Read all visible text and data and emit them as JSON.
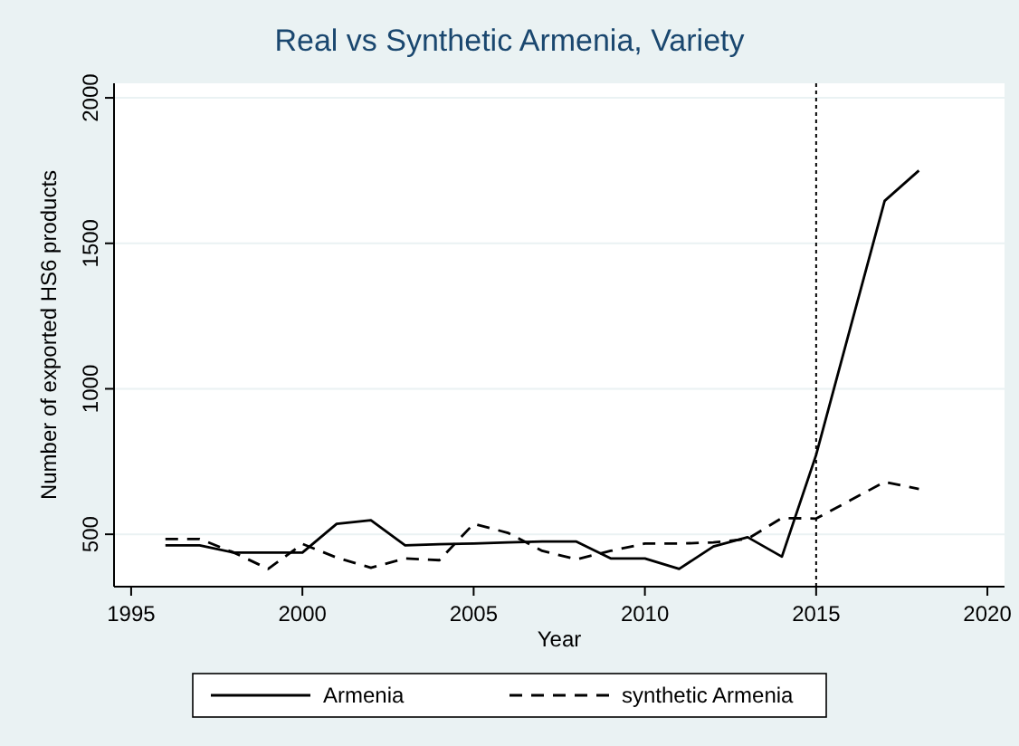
{
  "chart_data": {
    "type": "line",
    "title": "Real vs Synthetic Armenia, Variety",
    "xlabel": "Year",
    "ylabel": "Number of exported HS6 products",
    "x": [
      1996,
      1997,
      1998,
      1999,
      2000,
      2001,
      2002,
      2003,
      2004,
      2005,
      2006,
      2007,
      2008,
      2009,
      2010,
      2011,
      2012,
      2013,
      2014,
      2015,
      2016,
      2017,
      2018
    ],
    "series": [
      {
        "name": "Armenia",
        "color": "#000000",
        "line_style": "solid",
        "values": [
          462,
          462,
          437,
          437,
          437,
          536,
          548,
          462,
          466,
          468,
          472,
          475,
          475,
          417,
          417,
          381,
          458,
          490,
          423,
          773,
          1210,
          1646,
          1750
        ]
      },
      {
        "name": "synthetic Armenia",
        "color": "#000000",
        "line_style": "dashed",
        "values": [
          484,
          484,
          437,
          381,
          467,
          420,
          385,
          417,
          411,
          536,
          505,
          443,
          414,
          443,
          468,
          468,
          472,
          484,
          556,
          554,
          617,
          680,
          656
        ]
      }
    ],
    "xlim": [
      1994.5,
      2020.5
    ],
    "ylim": [
      320,
      2050
    ],
    "xticks": [
      1995,
      2000,
      2005,
      2010,
      2015,
      2020
    ],
    "yticks": [
      500,
      1000,
      1500,
      2000
    ],
    "grid": "y",
    "legend": "bottom",
    "ref_lines": [
      {
        "axis": "x",
        "value": 2015,
        "line_style": "dotted",
        "color": "#000000"
      }
    ]
  }
}
